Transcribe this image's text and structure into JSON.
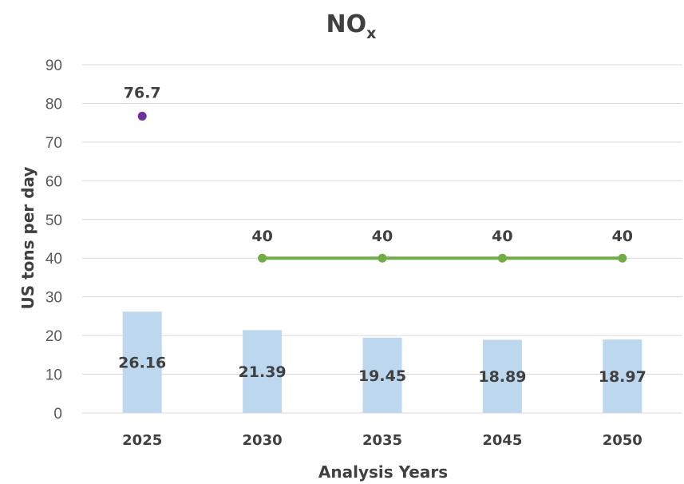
{
  "chart_data": {
    "type": "bar",
    "title": "NO",
    "title_subscript": "x",
    "xlabel": "Analysis Years",
    "ylabel": "US tons per day",
    "ylim": [
      0,
      90
    ],
    "yticks": [
      "0",
      "10",
      "20",
      "30",
      "40",
      "50",
      "60",
      "70",
      "80",
      "90"
    ],
    "categories": [
      "2025",
      "2030",
      "2035",
      "2045",
      "2050"
    ],
    "grid": true,
    "series": [
      {
        "type": "bar",
        "values": [
          26.16,
          21.39,
          19.45,
          18.89,
          18.97
        ],
        "labels": [
          "26.16",
          "21.39",
          "19.45",
          "18.89",
          "18.97"
        ],
        "color": "#bdd7ee"
      },
      {
        "type": "line",
        "values": [
          null,
          40,
          40,
          40,
          40
        ],
        "labels": [
          "",
          "40",
          "40",
          "40",
          "40"
        ],
        "color": "#70ad47"
      },
      {
        "type": "scatter",
        "values": [
          76.7,
          null,
          null,
          null,
          null
        ],
        "labels": [
          "76.7",
          "",
          "",
          "",
          ""
        ],
        "color": "#7030a0"
      }
    ]
  }
}
